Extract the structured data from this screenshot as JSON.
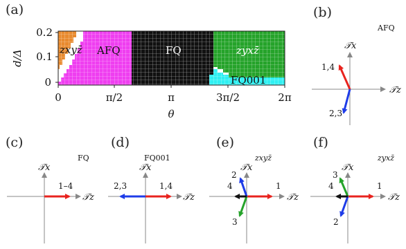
{
  "panels": {
    "a": "(a)",
    "b": "(b)",
    "c": "(c)",
    "d": "(d)",
    "e": "(e)",
    "f": "(f)"
  },
  "phase_diagram": {
    "xlabel": "θ",
    "ylabel": "d/Δ",
    "xticks": [
      "0",
      "π/2",
      "π",
      "3π/2",
      "2π"
    ],
    "yticks": [
      "0",
      "0.1",
      "0.2"
    ],
    "theta_range": [
      0,
      6.2832
    ],
    "d_range": [
      0,
      0.22
    ],
    "regions": [
      {
        "label": "zxyz̄",
        "color": "#e88a2e"
      },
      {
        "label": "AFQ",
        "color": "#ef3ef0"
      },
      {
        "label": "FQ",
        "color": "#111111"
      },
      {
        "label": "zyxz̄",
        "color": "#25a32a"
      },
      {
        "label": "FQ001",
        "color": "#2ff0f2"
      }
    ]
  },
  "vector_panels": [
    {
      "id": "b",
      "title": "AFQ",
      "axis_x": "𝒯x",
      "axis_z": "𝒯z",
      "vectors": [
        {
          "label": "1,4",
          "color": "#e8231e"
        },
        {
          "label": "2,3",
          "color": "#1e3ce8"
        }
      ]
    },
    {
      "id": "c",
      "title": "FQ",
      "axis_x": "𝒯x",
      "axis_z": "𝒯z",
      "vectors": [
        {
          "label": "1–4",
          "color": "#e8231e"
        }
      ]
    },
    {
      "id": "d",
      "title": "FQ001",
      "axis_x": "𝒯x",
      "axis_z": "𝒯z",
      "vectors": [
        {
          "label": "1,4",
          "color": "#e8231e"
        },
        {
          "label": "2,3",
          "color": "#1e3ce8"
        }
      ]
    },
    {
      "id": "e",
      "title": "zxyz̄",
      "axis_x": "𝒯x",
      "axis_z": "𝒯z",
      "vectors": [
        {
          "label": "1",
          "color": "#e8231e"
        },
        {
          "label": "2",
          "color": "#1e3ce8"
        },
        {
          "label": "3",
          "color": "#25a32a"
        },
        {
          "label": "4",
          "color": "#111111"
        }
      ]
    },
    {
      "id": "f",
      "title": "zyxz̄",
      "axis_x": "𝒯x",
      "axis_z": "𝒯z",
      "vectors": [
        {
          "label": "1",
          "color": "#e8231e"
        },
        {
          "label": "3",
          "color": "#25a32a"
        },
        {
          "label": "2",
          "color": "#1e3ce8"
        },
        {
          "label": "4",
          "color": "#111111"
        }
      ]
    }
  ]
}
